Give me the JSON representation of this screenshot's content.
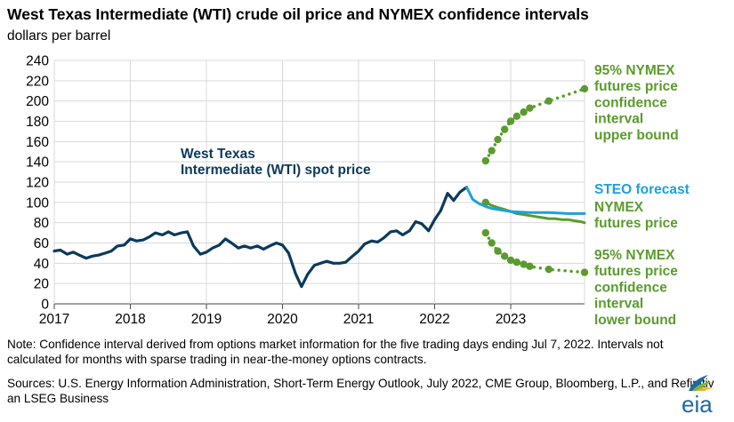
{
  "title": "West Texas Intermediate (WTI) crude oil price and NYMEX confidence intervals",
  "units": "dollars per barrel",
  "note": "Note: Confidence interval derived from options market information for the five trading days ending Jul 7, 2022. Intervals not calculated for months with sparse trading in near-the-money options contracts.",
  "sources": "Sources: U.S. Energy Information Administration, Short-Term Energy Outlook, July 2022, CME Group, Bloomberg, L.P., and Refinitiv an LSEG Business",
  "logo_text": "eia",
  "colors": {
    "wti": "#0b3a5c",
    "steo": "#1da1dc",
    "nymex": "#5b9b2e"
  },
  "chart_data": {
    "type": "line",
    "title": "West Texas Intermediate (WTI) crude oil price and NYMEX confidence intervals",
    "ylabel": "dollars per barrel",
    "xlabel": "",
    "xlim": [
      2017.0,
      2023.97
    ],
    "ylim": [
      0,
      240
    ],
    "grid": true,
    "x_ticks": [
      "2017",
      "2018",
      "2019",
      "2020",
      "2021",
      "2022",
      "2023"
    ],
    "y_ticks": [
      0,
      20,
      40,
      60,
      80,
      100,
      120,
      140,
      160,
      180,
      200,
      220,
      240
    ],
    "annotations": [
      {
        "series": "wti",
        "lines": [
          "West Texas",
          "Intermediate (WTI) spot price"
        ]
      },
      {
        "series": "upper",
        "lines": [
          "95% NYMEX",
          "futures price",
          "confidence",
          "interval",
          "upper bound"
        ]
      },
      {
        "series": "steo",
        "lines": [
          "STEO forecast"
        ]
      },
      {
        "series": "nymex",
        "lines": [
          "NYMEX",
          "futures price"
        ]
      },
      {
        "series": "lower",
        "lines": [
          "95% NYMEX",
          "futures price",
          "confidence",
          "interval",
          "lower bound"
        ]
      }
    ],
    "series": [
      {
        "key": "wti",
        "name": "West Texas Intermediate (WTI) spot price",
        "style": "solid",
        "x": [
          2017.0,
          2017.08,
          2017.17,
          2017.25,
          2017.33,
          2017.42,
          2017.5,
          2017.58,
          2017.67,
          2017.75,
          2017.83,
          2017.92,
          2018.0,
          2018.08,
          2018.17,
          2018.25,
          2018.33,
          2018.42,
          2018.5,
          2018.58,
          2018.67,
          2018.75,
          2018.83,
          2018.92,
          2019.0,
          2019.08,
          2019.17,
          2019.25,
          2019.33,
          2019.42,
          2019.5,
          2019.58,
          2019.67,
          2019.75,
          2019.83,
          2019.92,
          2020.0,
          2020.08,
          2020.17,
          2020.25,
          2020.33,
          2020.42,
          2020.5,
          2020.58,
          2020.67,
          2020.75,
          2020.83,
          2020.92,
          2021.0,
          2021.08,
          2021.17,
          2021.25,
          2021.33,
          2021.42,
          2021.5,
          2021.58,
          2021.67,
          2021.75,
          2021.83,
          2021.92,
          2022.0,
          2022.08,
          2022.17,
          2022.25,
          2022.33,
          2022.42
        ],
        "values": [
          52,
          53,
          49,
          51,
          48,
          45,
          47,
          48,
          50,
          52,
          57,
          58,
          64,
          62,
          63,
          66,
          70,
          68,
          71,
          68,
          70,
          71,
          57,
          49,
          51,
          55,
          58,
          64,
          60,
          55,
          57,
          55,
          57,
          54,
          57,
          60,
          58,
          50,
          30,
          17,
          29,
          38,
          40,
          42,
          40,
          40,
          41,
          47,
          52,
          59,
          62,
          61,
          65,
          71,
          72,
          68,
          72,
          81,
          79,
          72,
          83,
          92,
          109,
          102,
          110,
          115
        ]
      },
      {
        "key": "steo",
        "name": "STEO forecast",
        "style": "solid",
        "x": [
          2022.42,
          2022.5,
          2022.58,
          2022.67,
          2022.75,
          2022.83,
          2022.92,
          2023.0,
          2023.25,
          2023.5,
          2023.75,
          2023.97
        ],
        "values": [
          115,
          103,
          99,
          96,
          94,
          93,
          92,
          91,
          90,
          90,
          89,
          89
        ]
      },
      {
        "key": "nymex",
        "name": "NYMEX futures price",
        "style": "solid",
        "x": [
          2022.67,
          2022.75,
          2022.83,
          2022.92,
          2023.0,
          2023.08,
          2023.17,
          2023.25,
          2023.33,
          2023.42,
          2023.5,
          2023.58,
          2023.67,
          2023.75,
          2023.83,
          2023.92,
          2023.97
        ],
        "values": [
          100,
          97,
          95,
          93,
          91,
          89,
          88,
          87,
          86,
          85,
          84,
          84,
          83,
          83,
          82,
          81,
          80
        ]
      },
      {
        "key": "upper",
        "name": "95% NYMEX futures price confidence interval upper bound",
        "style": "dotted",
        "x": [
          2022.67,
          2022.75,
          2022.83,
          2022.92,
          2023.0,
          2023.08,
          2023.17,
          2023.25,
          2023.5,
          2023.97
        ],
        "values": [
          141,
          151,
          162,
          172,
          180,
          185,
          189,
          193,
          200,
          212
        ]
      },
      {
        "key": "lower",
        "name": "95% NYMEX futures price confidence interval lower bound",
        "style": "dotted",
        "x": [
          2022.67,
          2022.75,
          2022.83,
          2022.92,
          2023.0,
          2023.08,
          2023.17,
          2023.25,
          2023.5,
          2023.97
        ],
        "values": [
          70,
          60,
          52,
          47,
          43,
          41,
          39,
          37,
          34,
          31
        ]
      }
    ]
  }
}
